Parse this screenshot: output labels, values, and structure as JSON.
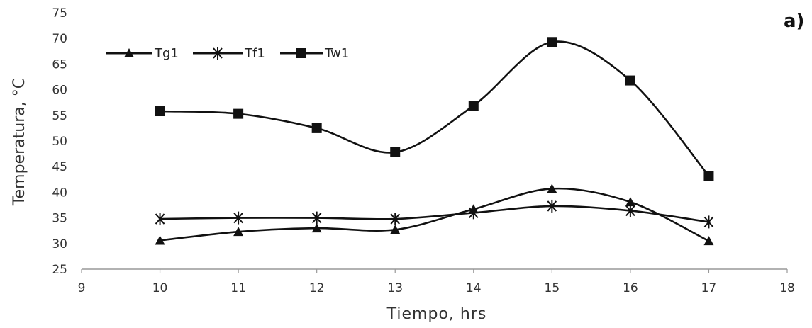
{
  "chart_data": {
    "type": "line",
    "panel_label": "a)",
    "xlabel": "Tiempo, hrs",
    "ylabel": "Temperatura, °C",
    "xlim": [
      9,
      18
    ],
    "ylim": [
      25,
      75
    ],
    "xticks": [
      9,
      10,
      11,
      12,
      13,
      14,
      15,
      16,
      17,
      18
    ],
    "yticks": [
      25,
      30,
      35,
      40,
      45,
      50,
      55,
      60,
      65,
      70,
      75
    ],
    "grid": false,
    "legend_position": "top-left",
    "x": [
      10,
      11,
      12,
      13,
      14,
      15,
      16,
      17
    ],
    "series": [
      {
        "name": "Tg1",
        "marker": "triangle",
        "values": [
          30.6,
          32.3,
          33.0,
          32.7,
          36.7,
          40.7,
          38.1,
          30.5
        ]
      },
      {
        "name": "Tf1",
        "marker": "asterisk",
        "values": [
          34.8,
          35.0,
          35.0,
          34.8,
          36.0,
          37.3,
          36.4,
          34.2
        ]
      },
      {
        "name": "Tw1",
        "marker": "square",
        "values": [
          55.8,
          55.3,
          52.5,
          47.8,
          56.9,
          69.3,
          61.8,
          43.2
        ]
      }
    ],
    "colors": {
      "line": "#111111",
      "axis": "#999999"
    }
  }
}
